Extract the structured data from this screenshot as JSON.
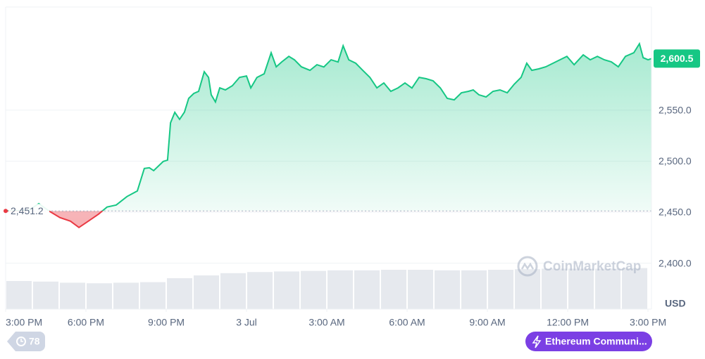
{
  "chart_data": {
    "type": "line",
    "x": [
      0,
      0.84,
      1.24,
      1.63,
      2.03,
      2.42,
      2.74,
      3.08,
      3.47,
      3.79,
      4.13,
      4.53,
      4.92,
      5.18,
      5.37,
      5.53,
      5.89,
      6.05,
      6.16,
      6.32,
      6.5,
      6.68,
      6.84,
      7.03,
      7.21,
      7.42,
      7.58,
      7.68,
      7.84,
      8,
      8.21,
      8.47,
      8.74,
      9,
      9.16,
      9.39,
      9.66,
      9.92,
      10.11,
      10.32,
      10.58,
      10.79,
      11.05,
      11.37,
      11.63,
      11.89,
      12.16,
      12.42,
      12.61,
      12.82,
      13.08,
      13.34,
      13.61,
      13.87,
      14.13,
      14.39,
      14.66,
      14.92,
      15.18,
      15.45,
      15.71,
      15.97,
      16.24,
      16.5,
      16.76,
      17.03,
      17.29,
      17.47,
      17.68,
      17.95,
      18.21,
      18.47,
      18.74,
      19,
      19.26,
      19.47,
      19.66,
      19.92,
      20.18,
      20.45,
      20.71,
      20.97,
      21.24,
      21.58,
      21.84,
      22.11,
      22.37,
      22.63,
      22.89,
      23.16,
      23.47,
      23.68,
      23.82,
      24,
      24.13
    ],
    "values": [
      2451.2,
      2451.5,
      2458.4,
      2451,
      2444.7,
      2441.2,
      2435,
      2441,
      2448.1,
      2455,
      2457,
      2465.3,
      2470.8,
      2492.8,
      2493.5,
      2490.7,
      2499.7,
      2501,
      2537.5,
      2547.8,
      2540.9,
      2548,
      2561.5,
      2566.3,
      2568.4,
      2587.6,
      2582.1,
      2565,
      2558,
      2571.8,
      2569.8,
      2573.9,
      2582.1,
      2583.5,
      2571.8,
      2582,
      2585.6,
      2606.2,
      2592.4,
      2597.3,
      2602.7,
      2599.3,
      2592.4,
      2589,
      2594.5,
      2592.3,
      2599.3,
      2597.2,
      2613.1,
      2599.3,
      2595.9,
      2589,
      2582.1,
      2571.8,
      2576.6,
      2568.4,
      2571.8,
      2576.6,
      2571.6,
      2582.1,
      2580.8,
      2578.7,
      2571.8,
      2561.5,
      2560.1,
      2567,
      2568.4,
      2569.8,
      2565,
      2562.9,
      2568.4,
      2569.8,
      2567,
      2575.3,
      2582.1,
      2595.9,
      2589,
      2590.4,
      2592.4,
      2595.9,
      2599.3,
      2602.7,
      2594.5,
      2604.1,
      2599.3,
      2602.7,
      2599.3,
      2597.3,
      2592.4,
      2602.7,
      2606.2,
      2615.1,
      2601.4,
      2599.3,
      2600.5
    ],
    "colors": {
      "up": "#16c784",
      "down": "#ea3943"
    },
    "reference_line": {
      "value": 2451.2,
      "label": "2,451.2"
    },
    "current_price": {
      "value": 2600.5,
      "label": "2,600.5"
    },
    "volume": {
      "x": [
        0.5,
        1.5,
        2.5,
        3.5,
        4.5,
        5.5,
        6.5,
        7.5,
        8.5,
        9.5,
        10.5,
        11.5,
        12.5,
        13.5,
        14.5,
        15.5,
        16.5,
        17.5,
        18.5,
        19.5,
        20.5,
        21.5,
        22.5,
        23.5
      ],
      "values": [
        50,
        49,
        47,
        46,
        47,
        48,
        55,
        60,
        64,
        66,
        67,
        68,
        69,
        69,
        70,
        70,
        69,
        69,
        70,
        71,
        72,
        72,
        72,
        73
      ],
      "color": "#e6e9ee"
    },
    "xlim": [
      0,
      24.13
    ],
    "ylim": [
      2355,
      2651
    ],
    "y2lim": [
      0,
      100
    ],
    "xticks": [
      {
        "value": 0,
        "label": "3:00 PM"
      },
      {
        "value": 3,
        "label": "6:00 PM"
      },
      {
        "value": 6,
        "label": "9:00 PM"
      },
      {
        "value": 9,
        "label": "3 Jul"
      },
      {
        "value": 12,
        "label": "3:00 AM"
      },
      {
        "value": 15,
        "label": "6:00 AM"
      },
      {
        "value": 18,
        "label": "9:00 AM"
      },
      {
        "value": 21,
        "label": "12:00 PM"
      },
      {
        "value": 24,
        "label": "3:00 PM"
      }
    ],
    "yticks": [
      {
        "value": 2400,
        "label": "2,400.0"
      },
      {
        "value": 2450,
        "label": "2,450.0"
      },
      {
        "value": 2500,
        "label": "2,500.0"
      },
      {
        "value": 2550,
        "label": "2,550.0"
      }
    ],
    "grid": true,
    "unit": "USD",
    "watermark": "CoinMarketCap",
    "history_badge": "78",
    "community_badge": "Ethereum Communi..."
  }
}
